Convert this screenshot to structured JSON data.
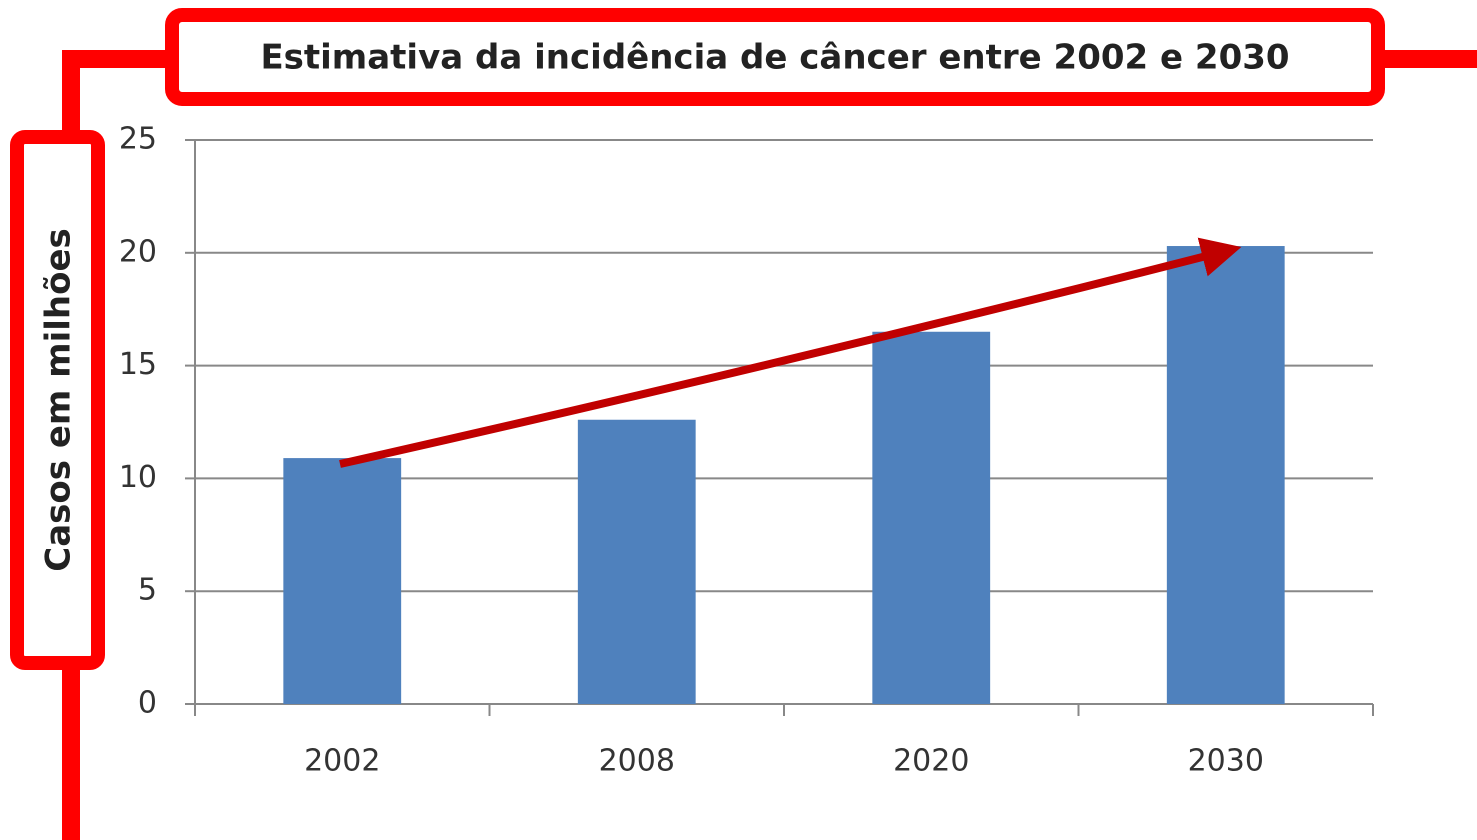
{
  "chart_data": {
    "type": "bar",
    "title": "Estimativa da incidência de câncer entre 2002 e 2030",
    "y_label": "Casos em milhões",
    "categories": [
      "2002",
      "2008",
      "2020",
      "2030"
    ],
    "values": [
      10.9,
      12.6,
      16.5,
      20.3
    ],
    "color": "#4f81bd",
    "ylim": [
      0,
      25
    ],
    "yticks": [
      0,
      5,
      10,
      15,
      20,
      25
    ],
    "grid": true
  }
}
